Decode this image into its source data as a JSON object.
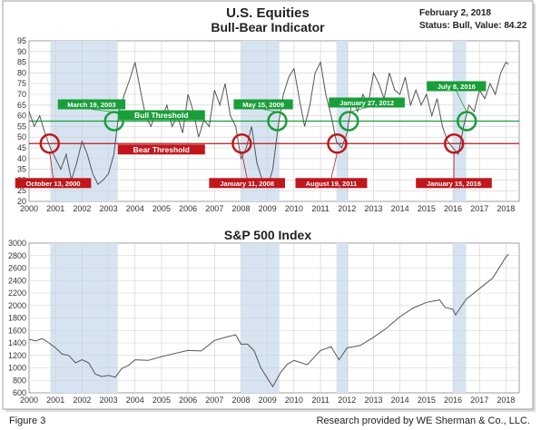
{
  "header": {
    "title_line1": "U.S. Equities",
    "title_line2": "Bull-Bear Indicator",
    "date": "February 2, 2018",
    "status": "Status: Bull, Value: 84.22"
  },
  "footer": {
    "figure_label": "Figure 3",
    "credit": "Research provided by WE Sherman & Co., LLC."
  },
  "colors": {
    "bull": "#1a9e3a",
    "bear": "#c0171c",
    "recession_band": "#d6e4f2",
    "series_line": "#555555",
    "grid": "#cfcfcf"
  },
  "chart_data": [
    {
      "type": "line",
      "title": "U.S. Equities Bull-Bear Indicator",
      "xlim": [
        2000,
        2018.5
      ],
      "ylim": [
        20,
        95
      ],
      "x_ticks": [
        "2000",
        "2001",
        "2002",
        "2003",
        "2004",
        "2005",
        "2006",
        "2007",
        "2008",
        "2009",
        "2010",
        "2011",
        "2012",
        "2013",
        "2014",
        "2015",
        "2016",
        "2017",
        "2018"
      ],
      "y_ticks": [
        20,
        25,
        30,
        35,
        40,
        45,
        50,
        55,
        60,
        65,
        70,
        75,
        80,
        85,
        90,
        95
      ],
      "grid": true,
      "shaded_periods": [
        [
          2000.8,
          2003.35
        ],
        [
          2008.0,
          2009.45
        ],
        [
          2011.6,
          2012.05
        ],
        [
          2016.0,
          2016.5
        ]
      ],
      "thresholds": [
        {
          "name": "Bull Threshold",
          "value": 57.5
        },
        {
          "name": "Bear Threshold",
          "value": 47
        }
      ],
      "annotations": [
        {
          "label": "October 13, 2000",
          "x": 2000.78,
          "y": 47,
          "signal": "bear"
        },
        {
          "label": "March 19, 2003",
          "x": 2003.21,
          "y": 57.5,
          "signal": "bull"
        },
        {
          "label": "January 11, 2008",
          "x": 2008.03,
          "y": 47,
          "signal": "bear"
        },
        {
          "label": "May 15, 2009",
          "x": 2009.37,
          "y": 57.5,
          "signal": "bull"
        },
        {
          "label": "August 19, 2011",
          "x": 2011.63,
          "y": 47,
          "signal": "bear"
        },
        {
          "label": "January 27, 2012",
          "x": 2012.07,
          "y": 57.5,
          "signal": "bull"
        },
        {
          "label": "January 15, 2016",
          "x": 2016.04,
          "y": 47,
          "signal": "bear"
        },
        {
          "label": "July 8, 2016",
          "x": 2016.52,
          "y": 57.5,
          "signal": "bull"
        }
      ],
      "series": [
        {
          "x": [
            2000.0,
            2000.2,
            2000.4,
            2000.6,
            2000.8,
            2001.0,
            2001.2,
            2001.4,
            2001.6,
            2001.8,
            2002.0,
            2002.2,
            2002.4,
            2002.6,
            2002.8,
            2003.0,
            2003.2,
            2003.4,
            2003.6,
            2003.8,
            2004.0,
            2004.2,
            2004.4,
            2004.6,
            2004.8,
            2005.0,
            2005.2,
            2005.4,
            2005.6,
            2005.8,
            2006.0,
            2006.2,
            2006.4,
            2006.6,
            2006.8,
            2007.0,
            2007.2,
            2007.4,
            2007.6,
            2007.8,
            2008.0,
            2008.2,
            2008.4,
            2008.6,
            2008.8,
            2009.0,
            2009.2,
            2009.4,
            2009.6,
            2009.8,
            2010.0,
            2010.2,
            2010.4,
            2010.6,
            2010.8,
            2011.0,
            2011.2,
            2011.4,
            2011.6,
            2011.8,
            2012.0,
            2012.2,
            2012.4,
            2012.6,
            2012.8,
            2013.0,
            2013.2,
            2013.4,
            2013.6,
            2013.8,
            2014.0,
            2014.2,
            2014.4,
            2014.6,
            2014.8,
            2015.0,
            2015.2,
            2015.4,
            2015.6,
            2015.8,
            2016.0,
            2016.2,
            2016.4,
            2016.6,
            2016.8,
            2017.0,
            2017.2,
            2017.4,
            2017.6,
            2017.8,
            2018.0,
            2018.1
          ],
          "values": [
            62,
            55,
            60,
            52,
            45,
            40,
            35,
            42,
            30,
            38,
            48,
            42,
            33,
            28,
            30,
            33,
            42,
            62,
            70,
            77,
            85,
            72,
            60,
            55,
            62,
            58,
            65,
            55,
            60,
            52,
            70,
            62,
            50,
            58,
            55,
            72,
            65,
            75,
            60,
            55,
            40,
            45,
            55,
            38,
            30,
            27,
            35,
            55,
            70,
            78,
            82,
            68,
            55,
            65,
            80,
            85,
            70,
            60,
            48,
            45,
            52,
            68,
            62,
            70,
            65,
            80,
            75,
            68,
            80,
            72,
            70,
            78,
            65,
            72,
            65,
            70,
            60,
            68,
            55,
            48,
            45,
            42,
            55,
            65,
            62,
            72,
            68,
            75,
            70,
            80,
            85,
            84
          ]
        }
      ]
    },
    {
      "type": "line",
      "title": "S&P 500 Index",
      "xlim": [
        2000,
        2018.5
      ],
      "ylim": [
        600,
        3000
      ],
      "x_ticks": [
        "2000",
        "2001",
        "2002",
        "2003",
        "2004",
        "2005",
        "2006",
        "2007",
        "2008",
        "2009",
        "2010",
        "2011",
        "2012",
        "2013",
        "2014",
        "2015",
        "2016",
        "2017",
        "2018"
      ],
      "y_ticks": [
        600,
        800,
        1000,
        1200,
        1400,
        1600,
        1800,
        2000,
        2200,
        2400,
        2600,
        2800,
        3000
      ],
      "grid": true,
      "shaded_periods": [
        [
          2000.8,
          2003.35
        ],
        [
          2008.0,
          2009.45
        ],
        [
          2011.6,
          2012.05
        ],
        [
          2016.0,
          2016.5
        ]
      ],
      "series": [
        {
          "x": [
            2000.0,
            2000.25,
            2000.5,
            2000.75,
            2001.0,
            2001.25,
            2001.5,
            2001.75,
            2002.0,
            2002.25,
            2002.5,
            2002.75,
            2003.0,
            2003.25,
            2003.5,
            2003.75,
            2004.0,
            2004.5,
            2005.0,
            2005.5,
            2006.0,
            2006.5,
            2007.0,
            2007.5,
            2007.8,
            2008.0,
            2008.25,
            2008.5,
            2008.75,
            2009.0,
            2009.2,
            2009.5,
            2009.75,
            2010.0,
            2010.5,
            2011.0,
            2011.4,
            2011.7,
            2012.0,
            2012.5,
            2013.0,
            2013.5,
            2014.0,
            2014.5,
            2015.0,
            2015.5,
            2015.7,
            2016.0,
            2016.1,
            2016.5,
            2017.0,
            2017.5,
            2018.0,
            2018.1
          ],
          "values": [
            1460,
            1430,
            1470,
            1400,
            1320,
            1220,
            1200,
            1080,
            1130,
            1080,
            900,
            860,
            880,
            850,
            990,
            1040,
            1130,
            1120,
            1180,
            1230,
            1280,
            1270,
            1440,
            1500,
            1530,
            1380,
            1380,
            1270,
            1000,
            830,
            700,
            930,
            1060,
            1120,
            1050,
            1280,
            1340,
            1130,
            1320,
            1360,
            1490,
            1640,
            1820,
            1960,
            2050,
            2090,
            1970,
            1940,
            1850,
            2100,
            2270,
            2440,
            2780,
            2820
          ]
        }
      ]
    }
  ]
}
